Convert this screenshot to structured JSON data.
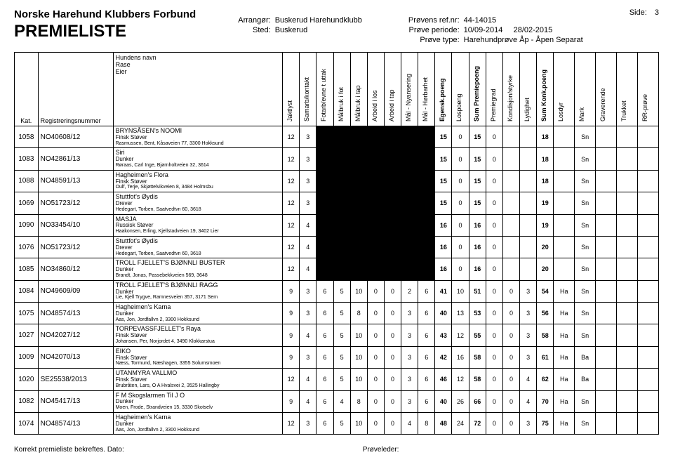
{
  "header": {
    "org_name": "Norske Harehund Klubbers Forbund",
    "title": "PREMIELISTE",
    "arrangor_label": "Arrangør:",
    "arrangor_value": "Buskerud Harehundklubb",
    "sted_label": "Sted:",
    "sted_value": "Buskerud",
    "page_label": "Side:",
    "page_num": "3",
    "refnr_label": "Prøvens ref.nr:",
    "refnr_value": "44-14015",
    "periode_label": "Prøve periode:",
    "periode_from": "10/09-2014",
    "periode_to": "28/02-2015",
    "type_label": "Prøve type:",
    "type_value": "Harehundprøve Åp - Åpen Separat"
  },
  "columns": {
    "kat": "Kat.",
    "reg": "Registreringsnummer",
    "dog": "Hundens navn\nRase\nEier",
    "c1": "Jaktlyst",
    "c2": "Samarb/kontakt",
    "c3": "Fotarb/evne t uttak",
    "c4": "Målbruk i fot",
    "c5": "Målbruk i tap",
    "c6": "Arbeid i los",
    "c7": "Arbeid i tap",
    "c8": "Mål - Nyansering",
    "c9": "Mål - Hørbarhet",
    "c10": "Egensk.poeng",
    "c11": "Lospoeng",
    "c12": "Sum Premiepoeng",
    "c13": "Premiegrad",
    "c14": "Kondisjon/styrke",
    "c15": "Lydighet",
    "c16": "Sum Konk.poeng",
    "c17": "Losdyr",
    "c18": "Mark",
    "c19": "Graverende",
    "c20": "Trukket",
    "c21": "RR-prøve"
  },
  "rows": [
    {
      "kat": "1058",
      "reg": "NO40608/12",
      "name": "BRYNSÅSEN's NOOMI",
      "breed": "Finsk Støver",
      "owner": "Rasmussen, Bent, Kåsaveien 77, 3300 Hokksund",
      "s": [
        "12",
        "3",
        "",
        "",
        "",
        "",
        "",
        "",
        "",
        "15",
        "0",
        "15",
        "0",
        "",
        "",
        "18",
        "",
        "Sn",
        "",
        "",
        ""
      ],
      "black": true
    },
    {
      "kat": "1083",
      "reg": "NO42861/13",
      "name": "Siri",
      "breed": "Dunker",
      "owner": "Røraas, Carl Inge, Bjørnholtveien 32, 3614",
      "s": [
        "12",
        "3",
        "",
        "",
        "",
        "",
        "",
        "",
        "",
        "15",
        "0",
        "15",
        "0",
        "",
        "",
        "18",
        "",
        "Sn",
        "",
        "",
        ""
      ],
      "black": true
    },
    {
      "kat": "1088",
      "reg": "NO48591/13",
      "name": "Hagheimen's Flora",
      "breed": "Finsk Støver",
      "owner": "Oulf, Terje, Skjøttelvikveien 8, 3484 Holmsbu",
      "s": [
        "12",
        "3",
        "",
        "",
        "",
        "",
        "",
        "",
        "",
        "15",
        "0",
        "15",
        "0",
        "",
        "",
        "18",
        "",
        "Sn",
        "",
        "",
        ""
      ],
      "black": true
    },
    {
      "kat": "1069",
      "reg": "NO51723/12",
      "name": "Stuttfot's Øydis",
      "breed": "Drever",
      "owner": "Hedegart, Torben, Saatvedtvn 60, 3618",
      "s": [
        "12",
        "3",
        "",
        "",
        "",
        "",
        "",
        "",
        "",
        "15",
        "0",
        "15",
        "0",
        "",
        "",
        "19",
        "",
        "Sn",
        "",
        "",
        ""
      ],
      "black": true
    },
    {
      "kat": "1090",
      "reg": "NO33454/10",
      "name": "MASJA",
      "breed": "Russisk Støver",
      "owner": "Haakonsen, Erling, Kjellstadveien 19, 3402 Lier",
      "s": [
        "12",
        "4",
        "",
        "",
        "",
        "",
        "",
        "",
        "",
        "16",
        "0",
        "16",
        "0",
        "",
        "",
        "19",
        "",
        "Sn",
        "",
        "",
        ""
      ],
      "black": true
    },
    {
      "kat": "1076",
      "reg": "NO51723/12",
      "name": "Stuttfot's Øydis",
      "breed": "Drever",
      "owner": "Hedegart, Torben, Saatvedtvn 60, 3618",
      "s": [
        "12",
        "4",
        "",
        "",
        "",
        "",
        "",
        "",
        "",
        "16",
        "0",
        "16",
        "0",
        "",
        "",
        "20",
        "",
        "Sn",
        "",
        "",
        ""
      ],
      "black": true
    },
    {
      "kat": "1085",
      "reg": "NO34860/12",
      "name": "TROLL FJELLET'S BJØNNLI  BUSTER",
      "breed": "Dunker",
      "owner": "Brandt, Jonas, Passebekkveien 569, 3648",
      "s": [
        "12",
        "4",
        "",
        "",
        "",
        "",
        "",
        "",
        "",
        "16",
        "0",
        "16",
        "0",
        "",
        "",
        "20",
        "",
        "Sn",
        "",
        "",
        ""
      ],
      "black": true
    },
    {
      "kat": "1084",
      "reg": "NO49609/09",
      "name": "TROLL FJELLET'S BJØNNLI RAGG",
      "breed": "Dunker",
      "owner": "Lie, Kjell Trygve, Ramnesveien 357, 3171 Sem",
      "s": [
        "9",
        "3",
        "6",
        "5",
        "10",
        "0",
        "0",
        "2",
        "6",
        "41",
        "10",
        "51",
        "0",
        "0",
        "3",
        "54",
        "Ha",
        "Sn",
        "",
        "",
        ""
      ],
      "black": false
    },
    {
      "kat": "1075",
      "reg": "NO48574/13",
      "name": "Hagheimen's Karna",
      "breed": "Dunker",
      "owner": "Aas, Jon, Jordfallvn 2, 3300 Hokksund",
      "s": [
        "9",
        "3",
        "6",
        "5",
        "8",
        "0",
        "0",
        "3",
        "6",
        "40",
        "13",
        "53",
        "0",
        "0",
        "3",
        "56",
        "Ha",
        "Sn",
        "",
        "",
        ""
      ],
      "black": false
    },
    {
      "kat": "1027",
      "reg": "NO42027/12",
      "name": "TORPEVASSFJELLET's Raya",
      "breed": "Finsk Støver",
      "owner": "Johansen, Per, Norjordet 4, 3490 Klokkarstua",
      "s": [
        "9",
        "4",
        "6",
        "5",
        "10",
        "0",
        "0",
        "3",
        "6",
        "43",
        "12",
        "55",
        "0",
        "0",
        "3",
        "58",
        "Ha",
        "Sn",
        "",
        "",
        ""
      ],
      "black": false
    },
    {
      "kat": "1009",
      "reg": "NO42070/13",
      "name": "EIKO",
      "breed": "Finsk Støver",
      "owner": "Næss, Tormund, Næshagen, 3355 Solumsmoen",
      "s": [
        "9",
        "3",
        "6",
        "5",
        "10",
        "0",
        "0",
        "3",
        "6",
        "42",
        "16",
        "58",
        "0",
        "0",
        "3",
        "61",
        "Ha",
        "Ba",
        "",
        "",
        ""
      ],
      "black": false
    },
    {
      "kat": "1020",
      "reg": "SE25538/2013",
      "name": "UTANMYRA VALLMO",
      "breed": "Finsk Støver",
      "owner": "Brubråten, Lars, O A Hvalsvei 2, 3525 Hallingby",
      "s": [
        "12",
        "4",
        "6",
        "5",
        "10",
        "0",
        "0",
        "3",
        "6",
        "46",
        "12",
        "58",
        "0",
        "0",
        "4",
        "62",
        "Ha",
        "Ba",
        "",
        "",
        ""
      ],
      "black": false
    },
    {
      "kat": "1082",
      "reg": "NO45417/13",
      "name": "F M Skogslarmen Til J O",
      "breed": "Dunker",
      "owner": "Moen, Frode, Strandveien 15, 3330 Skotselv",
      "s": [
        "9",
        "4",
        "6",
        "4",
        "8",
        "0",
        "0",
        "3",
        "6",
        "40",
        "26",
        "66",
        "0",
        "0",
        "4",
        "70",
        "Ha",
        "Sn",
        "",
        "",
        ""
      ],
      "black": false
    },
    {
      "kat": "1074",
      "reg": "NO48574/13",
      "name": "Hagheimen's Karna",
      "breed": "Dunker",
      "owner": "Aas, Jon, Jordfallvn 2, 3300 Hokksund",
      "s": [
        "12",
        "3",
        "6",
        "5",
        "10",
        "0",
        "0",
        "4",
        "8",
        "48",
        "24",
        "72",
        "0",
        "0",
        "3",
        "75",
        "Ha",
        "Sn",
        "",
        "",
        ""
      ],
      "black": false
    }
  ],
  "footer": {
    "confirm": "Korrekt premieliste bekreftes. Dato:",
    "leader": "Prøveleder:"
  },
  "style": {
    "bold_cols": [
      9,
      11,
      15
    ],
    "black_cols_when_true": [
      2,
      3,
      4,
      5,
      6,
      7,
      8
    ],
    "text_color": "#000000",
    "bg_color": "#ffffff"
  }
}
